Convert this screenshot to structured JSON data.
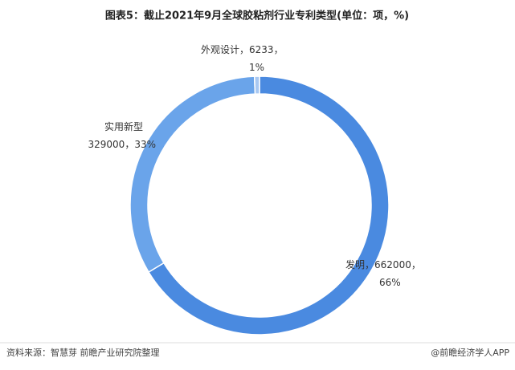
{
  "chart_data": {
    "type": "donut",
    "title": "图表5：截止2021年9月全球胶粘剂行业专利类型(单位：项，%)",
    "categories": [
      "发明",
      "实用新型",
      "外观设计"
    ],
    "values": [
      662000,
      329000,
      6233
    ],
    "percentages": [
      66,
      33,
      1
    ],
    "percentage_labels": [
      "66%",
      "33%",
      "1%"
    ],
    "label_separator": "，",
    "colors": [
      "#4a8ae0",
      "#6aa4ea",
      "#a8c8f2"
    ],
    "source": "资料来源：智慧芽 前瞻产业研究院整理",
    "credit": "@前瞻经济学人APP"
  }
}
